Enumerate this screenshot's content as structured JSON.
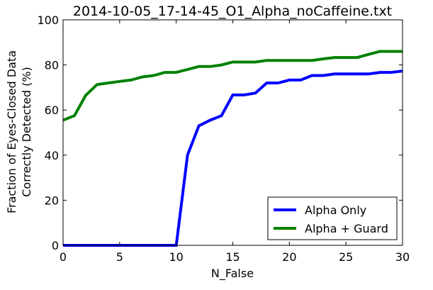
{
  "chart_data": {
    "type": "line",
    "title": "2014-10-05_17-14-45_O1_Alpha_noCaffeine.txt",
    "xlabel": "N_False",
    "ylabel_lines": [
      "Fraction of Eyes-Closed Data",
      "Correctly Detected (%)"
    ],
    "xlim": [
      0,
      30
    ],
    "ylim": [
      0,
      100
    ],
    "x_ticks": [
      0,
      5,
      10,
      15,
      20,
      25,
      30
    ],
    "y_ticks": [
      0,
      20,
      40,
      60,
      80,
      100
    ],
    "grid": false,
    "legend_position": "lower-right",
    "series": [
      {
        "name": "Alpha Only",
        "color": "#0000ff",
        "x": [
          0,
          1,
          2,
          3,
          4,
          5,
          6,
          7,
          8,
          9,
          10,
          11,
          12,
          13,
          14,
          15,
          16,
          17,
          18,
          19,
          20,
          21,
          22,
          23,
          24,
          25,
          26,
          27,
          28,
          29,
          30
        ],
        "values": [
          0,
          0,
          0,
          0,
          0,
          0,
          0,
          0,
          0,
          0,
          0,
          40,
          53,
          55.5,
          57.5,
          66.7,
          66.7,
          67.5,
          72,
          72,
          73.3,
          73.3,
          75.3,
          75.3,
          76,
          76,
          76,
          76,
          76.7,
          76.7,
          77.3
        ]
      },
      {
        "name": "Alpha + Guard",
        "color": "#008000",
        "x": [
          0,
          1,
          2,
          3,
          4,
          5,
          6,
          7,
          8,
          9,
          10,
          11,
          12,
          13,
          14,
          15,
          16,
          17,
          18,
          19,
          20,
          21,
          22,
          23,
          24,
          25,
          26,
          27,
          28,
          29,
          30
        ],
        "values": [
          55.5,
          57.5,
          66.5,
          71.3,
          72,
          72.7,
          73.3,
          74.7,
          75.3,
          76.7,
          76.7,
          78,
          79.3,
          79.3,
          80,
          81.3,
          81.3,
          81.3,
          82,
          82,
          82,
          82,
          82,
          82.7,
          83.3,
          83.3,
          83.3,
          84.7,
          86,
          86,
          86
        ]
      }
    ]
  }
}
